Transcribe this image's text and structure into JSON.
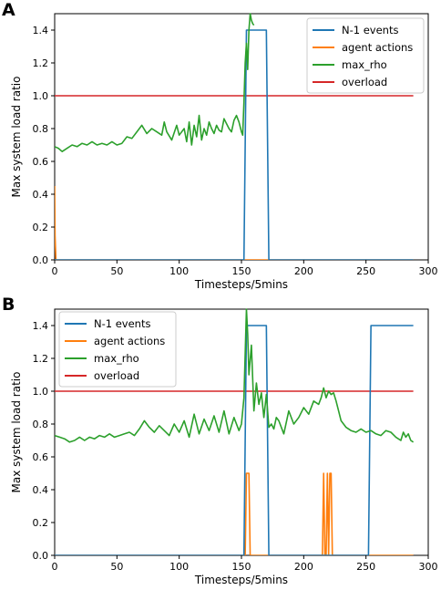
{
  "colors": {
    "n1": "#1f77b4",
    "agent": "#ff7f0e",
    "rho": "#2ca02c",
    "overload": "#d62728"
  },
  "chart_data": [
    {
      "panel_label": "A",
      "type": "line",
      "xlabel": "Timesteps/5mins",
      "ylabel": "Max system load ratio",
      "xlim": [
        0,
        300
      ],
      "ylim": [
        0,
        1.5
      ],
      "xticks": [
        0,
        50,
        100,
        150,
        200,
        250,
        300
      ],
      "yticks": [
        0.0,
        0.2,
        0.4,
        0.6,
        0.8,
        1.0,
        1.2,
        1.4
      ],
      "xtick_labels": [
        "0",
        "50",
        "100",
        "150",
        "200",
        "250",
        "300"
      ],
      "ytick_labels": [
        "0.0",
        "0.2",
        "0.4",
        "0.6",
        "0.8",
        "1.0",
        "1.2",
        "1.4"
      ],
      "legend_position": "top-right",
      "grid": false,
      "series": [
        {
          "name": "N-1 events",
          "color_key": "n1",
          "x": [
            0,
            152,
            154,
            170,
            172,
            288
          ],
          "y": [
            0,
            0,
            1.4,
            1.4,
            0,
            0
          ]
        },
        {
          "name": "agent actions",
          "color_key": "agent",
          "x": [
            0,
            0.3,
            1,
            2,
            288
          ],
          "y": [
            0.45,
            0.15,
            0,
            0,
            0
          ]
        },
        {
          "name": "max_rho",
          "color_key": "rho",
          "x": [
            0,
            3,
            6,
            10,
            14,
            18,
            22,
            26,
            30,
            34,
            38,
            42,
            46,
            50,
            54,
            58,
            62,
            66,
            70,
            74,
            78,
            82,
            86,
            88,
            90,
            94,
            98,
            100,
            104,
            106,
            108,
            110,
            112,
            114,
            116,
            118,
            120,
            122,
            124,
            126,
            128,
            130,
            132,
            134,
            136,
            138,
            140,
            142,
            144,
            146,
            148,
            150,
            151,
            152,
            153,
            154,
            155,
            156,
            157,
            158,
            159,
            160
          ],
          "y": [
            0.69,
            0.68,
            0.66,
            0.68,
            0.7,
            0.69,
            0.71,
            0.7,
            0.72,
            0.7,
            0.71,
            0.7,
            0.72,
            0.7,
            0.71,
            0.75,
            0.74,
            0.78,
            0.82,
            0.77,
            0.8,
            0.78,
            0.76,
            0.84,
            0.78,
            0.73,
            0.82,
            0.76,
            0.8,
            0.72,
            0.84,
            0.7,
            0.82,
            0.75,
            0.88,
            0.73,
            0.8,
            0.76,
            0.84,
            0.8,
            0.77,
            0.82,
            0.79,
            0.78,
            0.86,
            0.83,
            0.8,
            0.78,
            0.85,
            0.88,
            0.84,
            0.78,
            0.76,
            0.96,
            1.2,
            1.32,
            1.16,
            1.4,
            1.5,
            1.46,
            1.44,
            1.43
          ]
        }
      ],
      "reference_line": {
        "name": "overload",
        "color_key": "overload",
        "y": 1.0,
        "x": [
          0,
          288
        ]
      }
    },
    {
      "panel_label": "B",
      "type": "line",
      "xlabel": "Timesteps/5mins",
      "ylabel": "Max system load ratio",
      "xlim": [
        0,
        300
      ],
      "ylim": [
        0,
        1.5
      ],
      "xticks": [
        0,
        50,
        100,
        150,
        200,
        250,
        300
      ],
      "yticks": [
        0.0,
        0.2,
        0.4,
        0.6,
        0.8,
        1.0,
        1.2,
        1.4
      ],
      "xtick_labels": [
        "0",
        "50",
        "100",
        "150",
        "200",
        "250",
        "300"
      ],
      "ytick_labels": [
        "0.0",
        "0.2",
        "0.4",
        "0.6",
        "0.8",
        "1.0",
        "1.2",
        "1.4"
      ],
      "legend_position": "top-left",
      "grid": false,
      "series": [
        {
          "name": "N-1 events",
          "color_key": "n1",
          "x": [
            0,
            152,
            154,
            170,
            172,
            252,
            254,
            288
          ],
          "y": [
            0,
            0,
            1.4,
            1.4,
            0,
            0,
            1.4,
            1.4
          ]
        },
        {
          "name": "agent actions",
          "color_key": "agent",
          "x": [
            0,
            153,
            154,
            156,
            157,
            215,
            216,
            217,
            218,
            219,
            220,
            221,
            222,
            223,
            288
          ],
          "y": [
            0,
            0,
            0.5,
            0.5,
            0,
            0,
            0.5,
            0,
            0,
            0.5,
            0,
            0.5,
            0.5,
            0,
            0
          ]
        },
        {
          "name": "max_rho",
          "color_key": "rho",
          "x": [
            0,
            4,
            8,
            12,
            16,
            20,
            24,
            28,
            32,
            36,
            40,
            44,
            48,
            52,
            56,
            60,
            64,
            68,
            72,
            76,
            80,
            84,
            88,
            92,
            96,
            100,
            104,
            108,
            112,
            116,
            120,
            124,
            128,
            132,
            136,
            140,
            144,
            148,
            150,
            152,
            154,
            155,
            156,
            158,
            160,
            162,
            164,
            166,
            168,
            170,
            172,
            174,
            176,
            178,
            180,
            184,
            188,
            192,
            196,
            200,
            204,
            208,
            212,
            214,
            216,
            218,
            220,
            222,
            224,
            226,
            228,
            230,
            234,
            238,
            242,
            246,
            250,
            254,
            258,
            262,
            266,
            270,
            274,
            278,
            280,
            282,
            284,
            286,
            288
          ],
          "y": [
            0.73,
            0.72,
            0.71,
            0.69,
            0.7,
            0.72,
            0.7,
            0.72,
            0.71,
            0.73,
            0.72,
            0.74,
            0.72,
            0.73,
            0.74,
            0.75,
            0.73,
            0.77,
            0.82,
            0.78,
            0.75,
            0.79,
            0.76,
            0.73,
            0.8,
            0.75,
            0.82,
            0.72,
            0.86,
            0.74,
            0.83,
            0.76,
            0.85,
            0.75,
            0.88,
            0.74,
            0.84,
            0.76,
            0.8,
            0.96,
            1.5,
            1.35,
            1.1,
            1.28,
            0.88,
            1.05,
            0.92,
            0.99,
            0.84,
            0.98,
            0.78,
            0.8,
            0.77,
            0.84,
            0.82,
            0.74,
            0.88,
            0.8,
            0.84,
            0.9,
            0.86,
            0.94,
            0.92,
            0.96,
            1.02,
            0.96,
            1.0,
            0.98,
            0.99,
            0.94,
            0.88,
            0.82,
            0.78,
            0.76,
            0.75,
            0.77,
            0.75,
            0.76,
            0.74,
            0.73,
            0.76,
            0.75,
            0.72,
            0.7,
            0.75,
            0.72,
            0.74,
            0.7,
            0.69
          ]
        }
      ],
      "reference_line": {
        "name": "overload",
        "color_key": "overload",
        "y": 1.0,
        "x": [
          0,
          288
        ]
      }
    }
  ]
}
